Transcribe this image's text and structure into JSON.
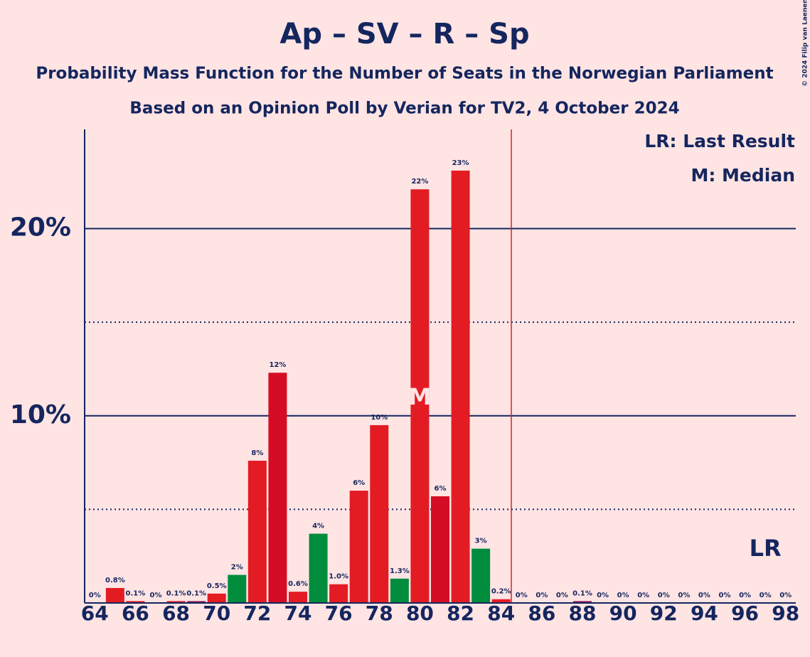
{
  "chart_data": {
    "type": "bar",
    "title": "Ap – SV – R – Sp",
    "subtitle": "Probability Mass Function for the Number of Seats in the Norwegian Parliament",
    "subtitle2": "Based on an Opinion Poll by Verian for TV2, 4 October 2024",
    "credit": "© 2024 Filip van Laenen",
    "legend": [
      "LR: Last Result",
      "M: Median"
    ],
    "categories": [
      64,
      null,
      66,
      null,
      68,
      null,
      70,
      null,
      72,
      null,
      74,
      null,
      76,
      null,
      78,
      null,
      80,
      null,
      82,
      null,
      84,
      null,
      86,
      null,
      88,
      null,
      90,
      null,
      92,
      null,
      94,
      null,
      96,
      null,
      98
    ],
    "values": [
      0,
      0.8,
      0.1,
      0,
      0.1,
      0.1,
      0.5,
      1.5,
      7.6,
      12.3,
      0.6,
      3.7,
      1.0,
      6.0,
      9.5,
      1.3,
      22.1,
      5.7,
      23.1,
      2.9,
      0.2,
      0,
      0,
      0,
      0.1,
      0,
      0,
      0,
      0,
      0,
      0,
      0,
      0,
      0,
      0
    ],
    "value_labels": [
      "0%",
      "0.8%",
      "0.1%",
      "0%",
      "0.1%",
      "0.1%",
      "0.5%",
      "2%",
      "8%",
      "12%",
      "0.6%",
      "4%",
      "1.0%",
      "6%",
      "10%",
      "1.3%",
      "22%",
      "6%",
      "23%",
      "3%",
      "0.2%",
      "0%",
      "0%",
      "0%",
      "0.1%",
      "0%",
      "0%",
      "0%",
      "0%",
      "0%",
      "0%",
      "0%",
      "0%",
      "0%",
      "0%"
    ],
    "colors": [
      "#e31c24",
      "#e31c24",
      "#e31c24",
      "#e31c24",
      "#e31c24",
      "#8b1f5a",
      "#e31c24",
      "#008c3c",
      "#e31c24",
      "#d50d24",
      "#e31c24",
      "#008c3c",
      "#e31c24",
      "#e31c24",
      "#e31c24",
      "#008c3c",
      "#e31c24",
      "#d50d24",
      "#e31c24",
      "#008c3c",
      "#e31c24",
      "#e31c24",
      "#e31c24",
      "#e31c24",
      "#8b1f5a",
      "#e31c24",
      "#e31c24",
      "#e31c24",
      "#e31c24",
      "#e31c24",
      "#e31c24",
      "#e31c24",
      "#e31c24",
      "#e31c24",
      "#e31c24"
    ],
    "ylim": [
      0,
      25.3
    ],
    "yticks": [
      {
        "value": 10,
        "label": "10%"
      },
      {
        "value": 20,
        "label": "20%"
      }
    ],
    "minor_yticks": [
      5,
      15
    ],
    "median": 80,
    "median_label": "M",
    "last_result": 97,
    "last_result_label": "LR",
    "majority": 85
  }
}
